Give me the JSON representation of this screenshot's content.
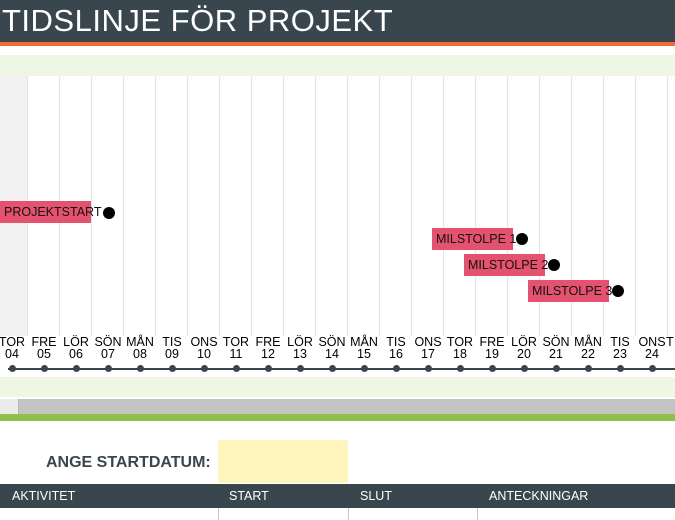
{
  "title": "TIDSLINJE FÖR PROJEKT",
  "milestones": [
    {
      "label": "PROJEKTSTART"
    },
    {
      "label": "MILSTOLPE 1"
    },
    {
      "label": "MILSTOLPE 2"
    },
    {
      "label": "MILSTOLPE 3"
    }
  ],
  "days": [
    {
      "wd": "TOR",
      "d": "04"
    },
    {
      "wd": "FRE",
      "d": "05"
    },
    {
      "wd": "LÖR",
      "d": "06"
    },
    {
      "wd": "SÖN",
      "d": "07"
    },
    {
      "wd": "MÅN",
      "d": "08"
    },
    {
      "wd": "TIS",
      "d": "09"
    },
    {
      "wd": "ONS",
      "d": "10"
    },
    {
      "wd": "TOR",
      "d": "11"
    },
    {
      "wd": "FRE",
      "d": "12"
    },
    {
      "wd": "LÖR",
      "d": "13"
    },
    {
      "wd": "SÖN",
      "d": "14"
    },
    {
      "wd": "MÅN",
      "d": "15"
    },
    {
      "wd": "TIS",
      "d": "16"
    },
    {
      "wd": "ONS",
      "d": "17"
    },
    {
      "wd": "TOR",
      "d": "18"
    },
    {
      "wd": "FRE",
      "d": "19"
    },
    {
      "wd": "LÖR",
      "d": "20"
    },
    {
      "wd": "SÖN",
      "d": "21"
    },
    {
      "wd": "MÅN",
      "d": "22"
    },
    {
      "wd": "TIS",
      "d": "23"
    },
    {
      "wd": "ONS",
      "d": "24"
    },
    {
      "wd": "T",
      "d": ""
    }
  ],
  "start_date": {
    "label": "ANGE STARTDATUM:",
    "value": ""
  },
  "table": {
    "headers": [
      "AKTIVITET",
      "START",
      "SLUT",
      "ANTECKNINGAR"
    ]
  },
  "colors": {
    "header": "#3a464e",
    "accent": "#f06a35",
    "milestone": "#e5526f",
    "band": "#eef6e4",
    "input": "#fdf5bc",
    "divider": "#8dc04d"
  }
}
